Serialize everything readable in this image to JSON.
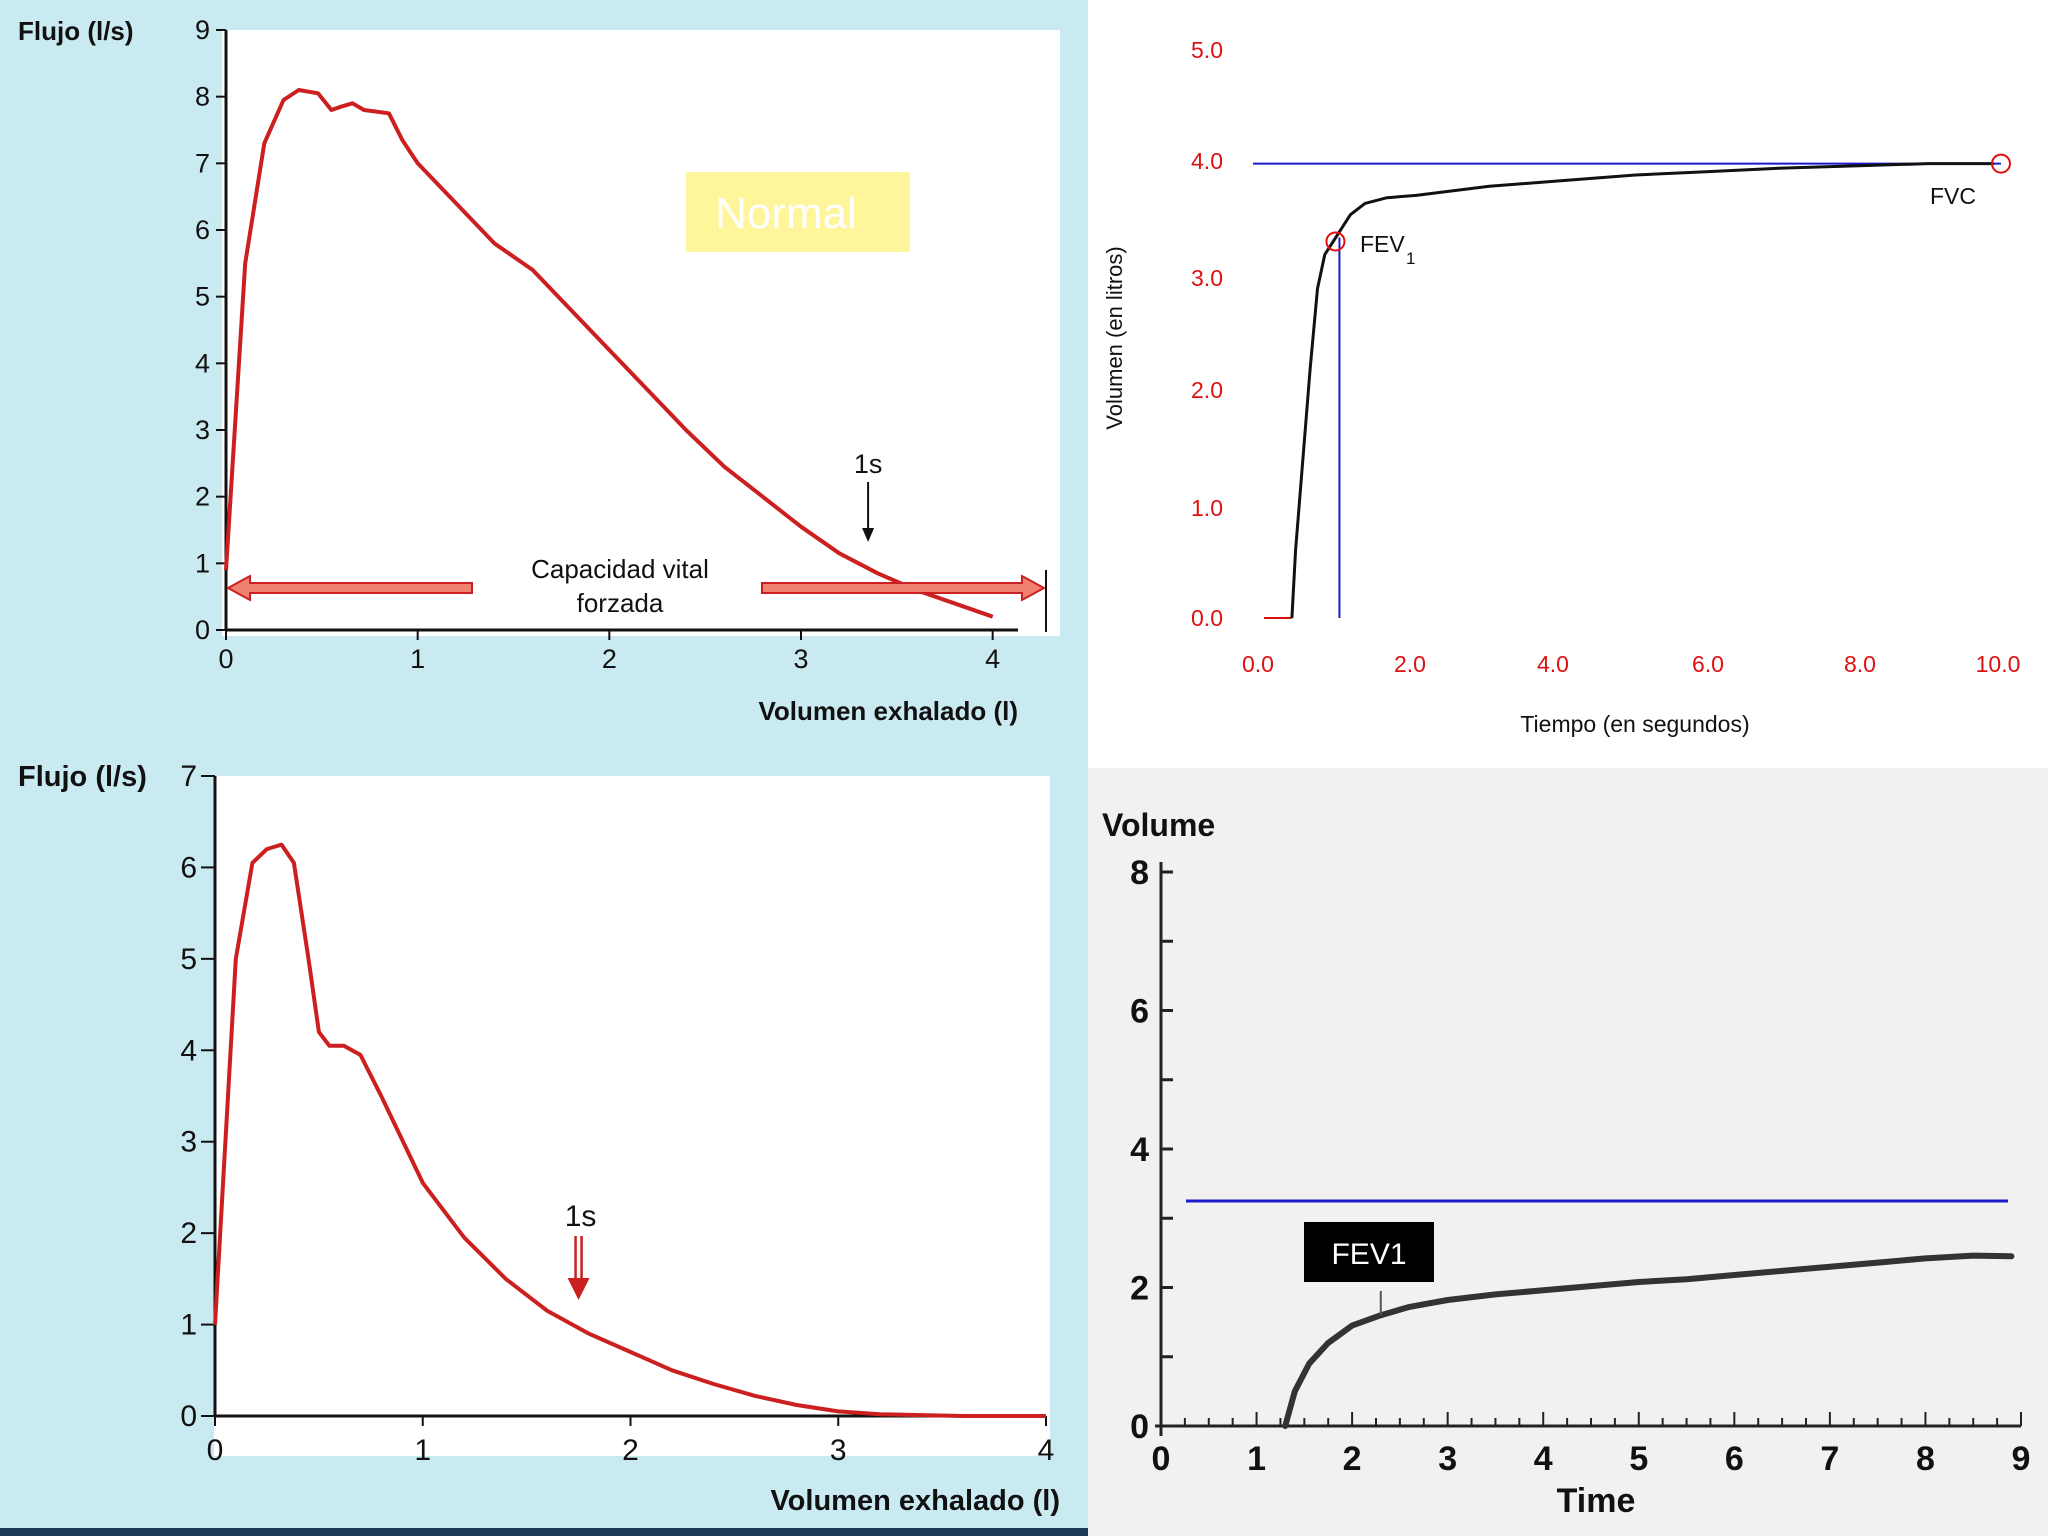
{
  "colors": {
    "panel_bg_blue": "#c9eaf0",
    "chart_red": "#cc1f1f",
    "arrow_fill": "#f08070",
    "label_yellow": "#fff59a",
    "axis_red_text": "#dd1111",
    "line_blue": "#1a1acc",
    "fev_box": "#000000"
  },
  "chart_data": [
    {
      "id": "normal-flow-volume",
      "type": "line",
      "title": "",
      "ylabel": "Flujo (l/s)",
      "xlabel": "Volumen exhalado (l)",
      "xlim": [
        0,
        4.2
      ],
      "ylim": [
        0,
        9
      ],
      "xticks": [
        "0",
        "1",
        "2",
        "3",
        "4"
      ],
      "yticks": [
        "0",
        "1",
        "2",
        "3",
        "4",
        "5",
        "6",
        "7",
        "8",
        "9"
      ],
      "badge": "Normal",
      "series": [
        {
          "name": "flujo",
          "x": [
            0,
            0.1,
            0.2,
            0.3,
            0.38,
            0.48,
            0.55,
            0.6,
            0.66,
            0.72,
            0.85,
            0.92,
            1.0,
            1.2,
            1.4,
            1.6,
            1.8,
            2.0,
            2.2,
            2.4,
            2.6,
            2.8,
            3.0,
            3.2,
            3.4,
            3.6,
            3.8,
            4.0
          ],
          "y": [
            0.9,
            5.5,
            7.3,
            7.95,
            8.1,
            8.05,
            7.8,
            7.85,
            7.9,
            7.8,
            7.75,
            7.35,
            7.0,
            6.4,
            5.8,
            5.4,
            4.8,
            4.2,
            3.6,
            3.0,
            2.45,
            2.0,
            1.55,
            1.15,
            0.85,
            0.6,
            0.4,
            0.2
          ]
        }
      ],
      "annotations": {
        "arrow_label": "1s",
        "arrow_x": 3.35,
        "fvc_label_line1": "Capacidad vital",
        "fvc_label_line2": "forzada"
      }
    },
    {
      "id": "obstructive-flow-volume",
      "type": "line",
      "title": "",
      "ylabel": "Flujo (l/s)",
      "xlabel": "Volumen exhalado (l)",
      "xlim": [
        0,
        4
      ],
      "ylim": [
        0,
        7
      ],
      "xticks": [
        "0",
        "1",
        "2",
        "3",
        "4"
      ],
      "yticks": [
        "0",
        "1",
        "2",
        "3",
        "4",
        "5",
        "6",
        "7"
      ],
      "series": [
        {
          "name": "flujo",
          "x": [
            0,
            0.1,
            0.18,
            0.25,
            0.32,
            0.38,
            0.45,
            0.5,
            0.55,
            0.62,
            0.7,
            0.8,
            1.0,
            1.2,
            1.4,
            1.6,
            1.8,
            2.0,
            2.2,
            2.4,
            2.6,
            2.8,
            3.0,
            3.2,
            3.4,
            3.6,
            3.8,
            4.0
          ],
          "y": [
            1.0,
            5.0,
            6.05,
            6.2,
            6.25,
            6.05,
            5.0,
            4.2,
            4.05,
            4.05,
            3.95,
            3.5,
            2.55,
            1.95,
            1.5,
            1.15,
            0.9,
            0.7,
            0.5,
            0.35,
            0.22,
            0.12,
            0.05,
            0.02,
            0.01,
            0.0,
            0.0,
            0.0
          ]
        }
      ],
      "annotations": {
        "arrow_label": "1s",
        "arrow_x": 1.75
      }
    },
    {
      "id": "normal-volume-time",
      "type": "line",
      "title": "",
      "ylabel": "Volumen (en litros)",
      "xlabel": "Tiempo (en segundos)",
      "xlim": [
        0,
        10
      ],
      "ylim": [
        0,
        5
      ],
      "xticks": [
        "0.0",
        "2.0",
        "4.0",
        "6.0",
        "8.0",
        "10.0"
      ],
      "yticks": [
        "0.0",
        "1.0",
        "2.0",
        "3.0",
        "4.0",
        "5.0"
      ],
      "series": [
        {
          "name": "volumen",
          "x": [
            0.3,
            0.35,
            0.45,
            0.55,
            0.65,
            0.75,
            0.9,
            1.1,
            1.3,
            1.6,
            2.0,
            3.0,
            4.0,
            5.0,
            6.0,
            7.0,
            8.0,
            9.0,
            9.9
          ],
          "y": [
            0.0,
            0.6,
            1.4,
            2.2,
            2.9,
            3.2,
            3.35,
            3.55,
            3.65,
            3.7,
            3.72,
            3.8,
            3.85,
            3.9,
            3.93,
            3.96,
            3.98,
            4.0,
            4.0
          ]
        }
      ],
      "fvc_level": 4.0,
      "fev1_time": 0.95,
      "fev1_value": 3.35,
      "labels": {
        "fev": "FEV",
        "fev_sub": "1",
        "fvc": "FVC"
      }
    },
    {
      "id": "obstructive-volume-time",
      "type": "line",
      "title": "",
      "ylabel": "Volume",
      "xlabel": "Time",
      "xlim": [
        0,
        9
      ],
      "ylim": [
        0,
        8
      ],
      "xticks": [
        "0",
        "1",
        "2",
        "3",
        "4",
        "5",
        "6",
        "7",
        "8",
        "9"
      ],
      "yticks": [
        "0",
        "2",
        "4",
        "6",
        "8"
      ],
      "series": [
        {
          "name": "volume",
          "x": [
            1.3,
            1.4,
            1.55,
            1.75,
            2.0,
            2.3,
            2.6,
            3.0,
            3.5,
            4.0,
            4.5,
            5.0,
            5.5,
            6.0,
            6.5,
            7.0,
            7.5,
            8.0,
            8.5,
            8.9
          ],
          "y": [
            0.0,
            0.5,
            0.9,
            1.2,
            1.45,
            1.6,
            1.72,
            1.82,
            1.9,
            1.96,
            2.02,
            2.08,
            2.12,
            2.18,
            2.24,
            2.3,
            2.36,
            2.42,
            2.46,
            2.45
          ]
        }
      ],
      "fvc_level": 3.25,
      "fev_box_label": "FEV1",
      "fev1_time": 2.3
    }
  ]
}
